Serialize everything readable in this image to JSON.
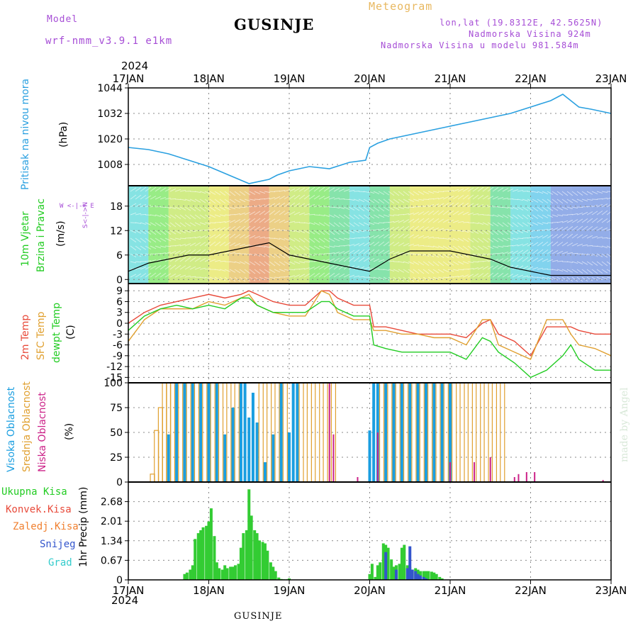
{
  "header": {
    "model_label": "Model",
    "model_name": "wrf-nmm_v3.9.1 e1km",
    "title": "GUSINJE",
    "product": "Meteogram",
    "lonlat": "lon,lat (19.8312E, 42.5625N)",
    "elevation": "Nadmorska Visina 924m",
    "model_elevation": "Nadmorska Visina u modelu 981.584m",
    "year_top": "2024",
    "year_bottom": "2024",
    "footer_title": "GUSINJE",
    "credit": "made by Angel"
  },
  "colors": {
    "pressure": "#2aa0e0",
    "temp2m": "#e84a3a",
    "sfctemp": "#e0a030",
    "dewpt": "#22cc22",
    "high_cloud": "#1a9ee0",
    "mid_cloud": "#e0a030",
    "low_cloud": "#cc2288",
    "precip_total": "#33cc33",
    "snow": "#3355cc",
    "title_purple": "#a64dd6",
    "product_orange": "#e8b860",
    "dir_purple": "#a64dd6"
  },
  "chart_data": [
    {
      "id": "pressure",
      "type": "line",
      "y_title": "Pritisak na nivou mora",
      "y_unit": "(hPa)",
      "x_ticks": [
        "17JAN",
        "18JAN",
        "19JAN",
        "20JAN",
        "21JAN",
        "22JAN",
        "23JAN"
      ],
      "ylim": [
        998,
        1044
      ],
      "y_ticks": [
        1008,
        1020,
        1032,
        1044
      ],
      "grid": true,
      "series": [
        {
          "x": [
            0,
            0.25,
            0.5,
            0.75,
            1.0,
            1.25,
            1.5,
            1.75,
            1.85,
            2.0,
            2.25,
            2.5,
            2.75,
            2.95,
            3.0,
            3.1,
            3.25,
            3.5,
            3.75,
            4.0,
            4.25,
            4.5,
            4.75,
            5.0,
            5.25,
            5.4,
            5.5,
            5.6,
            5.75,
            6.0
          ],
          "y": [
            1016,
            1015,
            1013,
            1010,
            1007,
            1003,
            999,
            1001,
            1003,
            1005,
            1007,
            1006,
            1009,
            1010,
            1016,
            1018,
            1020,
            1022,
            1024,
            1026,
            1028,
            1030,
            1032,
            1035,
            1038,
            1041,
            1038,
            1035,
            1034,
            1032
          ]
        }
      ]
    },
    {
      "id": "wind",
      "type": "scatter",
      "y_title_1": "10m Vjetar",
      "y_title_2": "Brzina i Pravac",
      "y_unit": "(m/s)",
      "dir_legend": "W <-|-> E",
      "dir_legend_vert": "S<-|->N",
      "ylim": [
        -1,
        23
      ],
      "y_ticks": [
        0,
        6,
        12,
        18
      ],
      "grid": true,
      "series": [
        {
          "name": "speed",
          "x": [
            0,
            0.25,
            0.5,
            0.75,
            1.0,
            1.25,
            1.5,
            1.75,
            2.0,
            2.25,
            2.5,
            2.75,
            3.0,
            3.25,
            3.5,
            3.75,
            4.0,
            4.25,
            4.5,
            4.75,
            5.0,
            5.25,
            5.5,
            5.75,
            6.0
          ],
          "y": [
            2,
            4,
            5,
            6,
            6,
            7,
            8,
            9,
            6,
            5,
            4,
            3,
            2,
            5,
            7,
            7,
            7,
            6,
            5,
            3,
            2,
            1,
            1,
            1,
            1
          ]
        }
      ]
    },
    {
      "id": "temperature",
      "type": "line",
      "y_title_1": "2m Temp",
      "y_title_2": "SFC Temp",
      "y_title_3": "dewpt Temp",
      "y_unit": "(C)",
      "ylim": [
        -16.5,
        11
      ],
      "y_ticks": [
        9,
        6,
        3,
        0,
        -3,
        -6,
        -9,
        -12,
        -15
      ],
      "grid": true,
      "series": [
        {
          "name": "2m Temp",
          "x": [
            0,
            0.2,
            0.4,
            0.6,
            0.8,
            1.0,
            1.2,
            1.4,
            1.5,
            1.6,
            1.8,
            2.0,
            2.2,
            2.4,
            2.5,
            2.6,
            2.8,
            3.0,
            3.05,
            3.2,
            3.4,
            3.6,
            3.8,
            4.0,
            4.2,
            4.4,
            4.5,
            4.6,
            4.8,
            5.0,
            5.2,
            5.4,
            5.5,
            5.6,
            5.8,
            6.0
          ],
          "y": [
            0,
            3,
            5,
            6,
            7,
            8,
            7,
            8,
            9,
            8,
            6,
            5,
            5,
            9,
            9,
            7,
            5,
            5,
            -1,
            -1,
            -2,
            -3,
            -3,
            -3,
            -4,
            0,
            1,
            -3,
            -5,
            -9,
            -1,
            -1,
            -1,
            -2,
            -3,
            -3
          ]
        },
        {
          "name": "SFC Temp",
          "x": [
            0,
            0.2,
            0.4,
            0.6,
            0.8,
            1.0,
            1.2,
            1.4,
            1.5,
            1.6,
            1.8,
            2.0,
            2.2,
            2.4,
            2.5,
            2.6,
            2.8,
            3.0,
            3.05,
            3.2,
            3.4,
            3.6,
            3.8,
            4.0,
            4.2,
            4.4,
            4.5,
            4.6,
            4.8,
            5.0,
            5.2,
            5.4,
            5.5,
            5.6,
            5.8,
            6.0
          ],
          "y": [
            -5,
            1,
            4,
            4,
            4,
            6,
            5,
            7,
            8,
            5,
            3,
            2,
            2,
            9,
            8,
            3,
            1,
            1,
            -2,
            -2,
            -3,
            -3,
            -4,
            -4,
            -6,
            1,
            1,
            -6,
            -8,
            -10,
            1,
            1,
            -3,
            -6,
            -7,
            -9
          ]
        },
        {
          "name": "dewpt Temp",
          "x": [
            0,
            0.2,
            0.4,
            0.6,
            0.8,
            1.0,
            1.2,
            1.4,
            1.5,
            1.6,
            1.8,
            2.0,
            2.2,
            2.4,
            2.5,
            2.6,
            2.8,
            3.0,
            3.05,
            3.2,
            3.4,
            3.6,
            3.8,
            4.0,
            4.2,
            4.4,
            4.5,
            4.6,
            4.8,
            5.0,
            5.2,
            5.4,
            5.5,
            5.6,
            5.8,
            6.0
          ],
          "y": [
            -2,
            2,
            4,
            5,
            4,
            5,
            4,
            7,
            7,
            5,
            3,
            3,
            3,
            6,
            6,
            4,
            2,
            2,
            -6,
            -7,
            -8,
            -8,
            -8,
            -8,
            -10,
            -4,
            -5,
            -8,
            -11,
            -15,
            -13,
            -9,
            -6,
            -10,
            -13,
            -13
          ]
        }
      ]
    },
    {
      "id": "clouds",
      "type": "bar",
      "y_title_1": "Visoka Oblacnost",
      "y_title_2": "Srednja Oblacnost",
      "y_title_3": "Niska Oblacnost",
      "y_unit": "(%)",
      "ylim": [
        0,
        100
      ],
      "y_ticks": [
        0,
        25,
        50,
        75,
        100
      ],
      "grid": true,
      "series": [
        {
          "name": "high",
          "x": [
            0.5,
            0.6,
            0.7,
            0.8,
            0.9,
            1.0,
            1.1,
            1.2,
            1.3,
            1.4,
            1.45,
            1.5,
            1.55,
            1.6,
            1.7,
            1.8,
            1.9,
            2.0,
            2.05,
            2.1,
            3.0,
            3.05,
            3.1,
            3.2,
            3.3,
            3.4,
            3.5,
            3.6,
            3.7,
            3.8,
            3.9,
            4.0
          ],
          "y": [
            48,
            100,
            100,
            100,
            100,
            100,
            100,
            48,
            75,
            100,
            100,
            65,
            90,
            60,
            20,
            48,
            100,
            50,
            100,
            100,
            52,
            100,
            100,
            100,
            100,
            100,
            100,
            100,
            100,
            100,
            100,
            100
          ]
        },
        {
          "name": "mid",
          "x": [
            0.3,
            0.35,
            0.4,
            0.45,
            0.5,
            0.55,
            0.65,
            0.75,
            0.85,
            0.95,
            1.05,
            1.15,
            1.25,
            1.35,
            1.65,
            1.75,
            1.85,
            1.95,
            2.15,
            2.25,
            2.35,
            2.45,
            2.55,
            3.15,
            3.25,
            3.35,
            3.45,
            3.55,
            3.65,
            3.75,
            3.85,
            3.95,
            4.05,
            4.15,
            4.25,
            4.35,
            4.45,
            4.55,
            4.65
          ],
          "y": [
            8,
            52,
            75,
            100,
            100,
            100,
            100,
            100,
            100,
            100,
            100,
            100,
            100,
            100,
            100,
            100,
            100,
            100,
            100,
            100,
            100,
            100,
            100,
            100,
            100,
            100,
            100,
            100,
            100,
            100,
            100,
            100,
            100,
            100,
            100,
            100,
            100,
            100,
            100
          ]
        },
        {
          "name": "low",
          "x": [
            2.5,
            2.55,
            2.85,
            3.1,
            4.0,
            4.3,
            4.5,
            4.8,
            4.85,
            4.95,
            5.05,
            5.9
          ],
          "y": [
            100,
            48,
            5,
            50,
            20,
            20,
            25,
            5,
            8,
            10,
            10,
            2
          ]
        }
      ]
    },
    {
      "id": "precip",
      "type": "bar",
      "legend": [
        "Ukupna Kisa",
        "Konvek.Kisa",
        "Zaledj.Kisa",
        "Snijeg",
        "Grad"
      ],
      "y_unit": "1hr Precip (mm)",
      "x_ticks": [
        "17JAN",
        "18JAN",
        "19JAN",
        "20JAN",
        "21JAN",
        "22JAN",
        "23JAN"
      ],
      "ylim": [
        0,
        3.35
      ],
      "y_ticks": [
        0,
        0.67,
        1.34,
        2.01,
        2.68
      ],
      "grid": true,
      "series": [
        {
          "name": "Ukupna Kisa",
          "x": [
            0.7,
            0.73,
            0.77,
            0.8,
            0.83,
            0.87,
            0.9,
            0.93,
            0.97,
            1.0,
            1.03,
            1.07,
            1.1,
            1.13,
            1.17,
            1.2,
            1.23,
            1.27,
            1.3,
            1.33,
            1.37,
            1.4,
            1.43,
            1.47,
            1.5,
            1.53,
            1.57,
            1.6,
            1.63,
            1.67,
            1.7,
            1.73,
            1.77,
            1.8,
            1.83,
            1.87,
            1.9,
            1.93,
            1.97,
            2.0,
            3.0,
            3.03,
            3.07,
            3.1,
            3.13,
            3.17,
            3.2,
            3.23,
            3.27,
            3.3,
            3.33,
            3.37,
            3.4,
            3.43,
            3.47,
            3.5,
            3.53,
            3.57,
            3.6,
            3.63,
            3.67,
            3.7,
            3.73,
            3.77,
            3.8,
            3.83,
            3.87,
            3.9
          ],
          "y": [
            0.2,
            0.25,
            0.35,
            0.5,
            1.4,
            1.6,
            1.7,
            1.8,
            1.85,
            2.0,
            2.45,
            1.5,
            0.6,
            0.4,
            0.35,
            0.5,
            0.4,
            0.45,
            0.45,
            0.5,
            0.55,
            1.1,
            1.6,
            1.7,
            3.1,
            2.2,
            1.7,
            1.6,
            1.35,
            1.3,
            1.25,
            1.0,
            0.6,
            0.45,
            0.3,
            0.08,
            0.03,
            0.02,
            0.02,
            0.05,
            0.2,
            0.55,
            0.1,
            0.5,
            0.6,
            1.25,
            1.2,
            1.1,
            0.7,
            0.45,
            0.5,
            0.55,
            1.1,
            1.2,
            0.5,
            0.45,
            0.35,
            0.4,
            0.35,
            0.3,
            0.3,
            0.3,
            0.3,
            0.28,
            0.25,
            0.2,
            0.1,
            0.05
          ]
        },
        {
          "name": "Snijeg",
          "x": [
            3.2,
            3.33,
            3.47,
            3.5,
            3.53,
            3.57,
            3.6,
            3.63,
            3.67,
            3.7
          ],
          "y": [
            0.95,
            0.35,
            0.4,
            1.15,
            0.35,
            0.3,
            0.2,
            0.15,
            0.1,
            0.05
          ]
        }
      ]
    }
  ]
}
